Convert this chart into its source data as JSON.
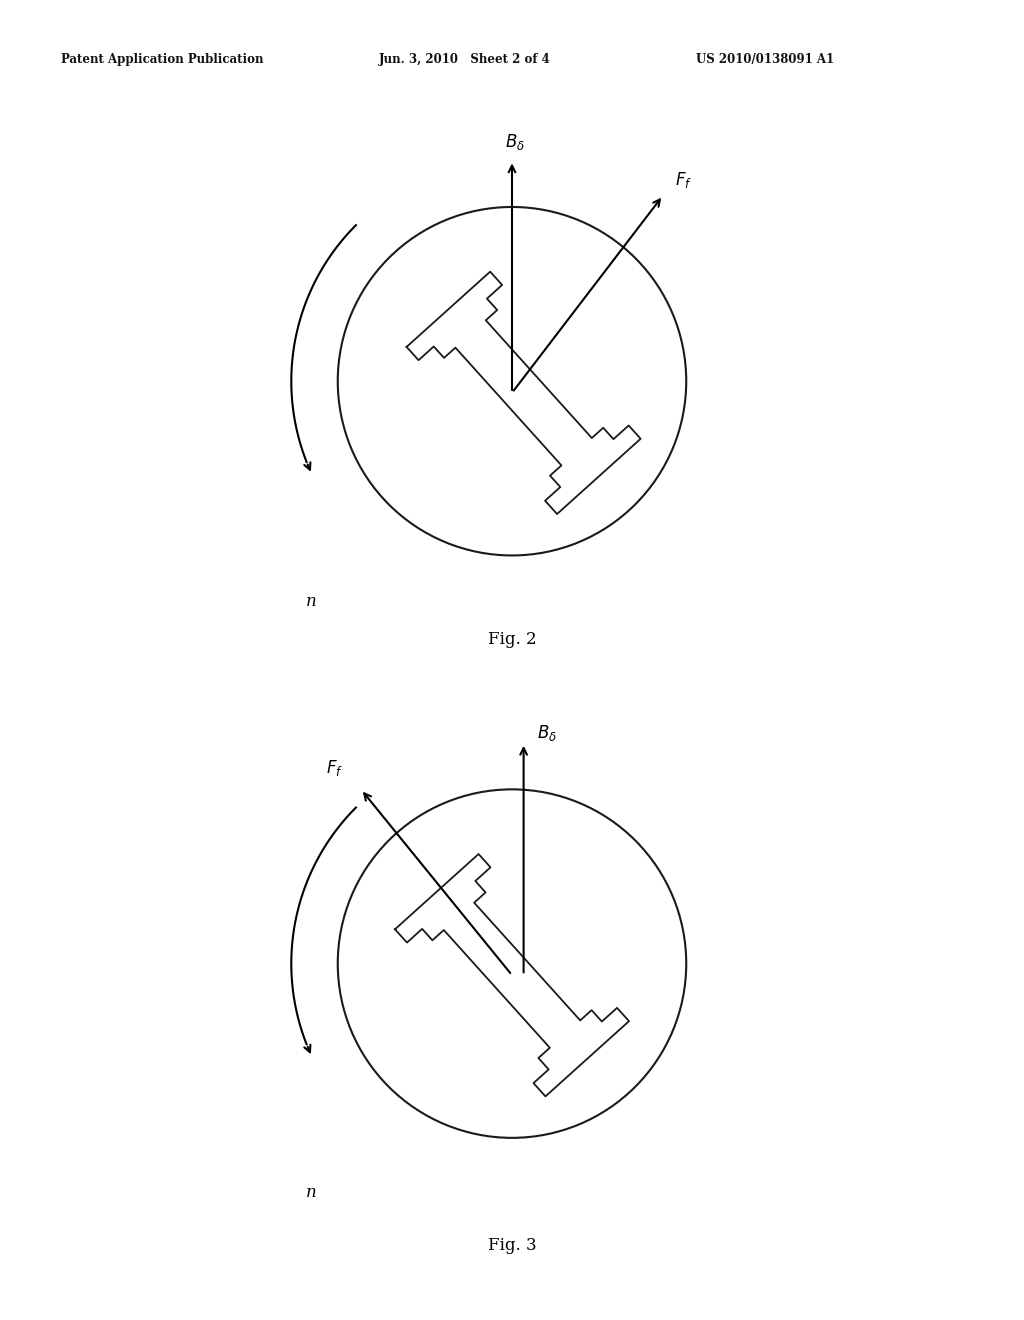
{
  "header_left": "Patent Application Publication",
  "header_mid": "Jun. 3, 2010   Sheet 2 of 4",
  "header_right": "US 2010/0138091 A1",
  "fig2_label": "Fig. 2",
  "fig3_label": "Fig. 3",
  "bg_color": "#ffffff",
  "line_color": "#000000"
}
